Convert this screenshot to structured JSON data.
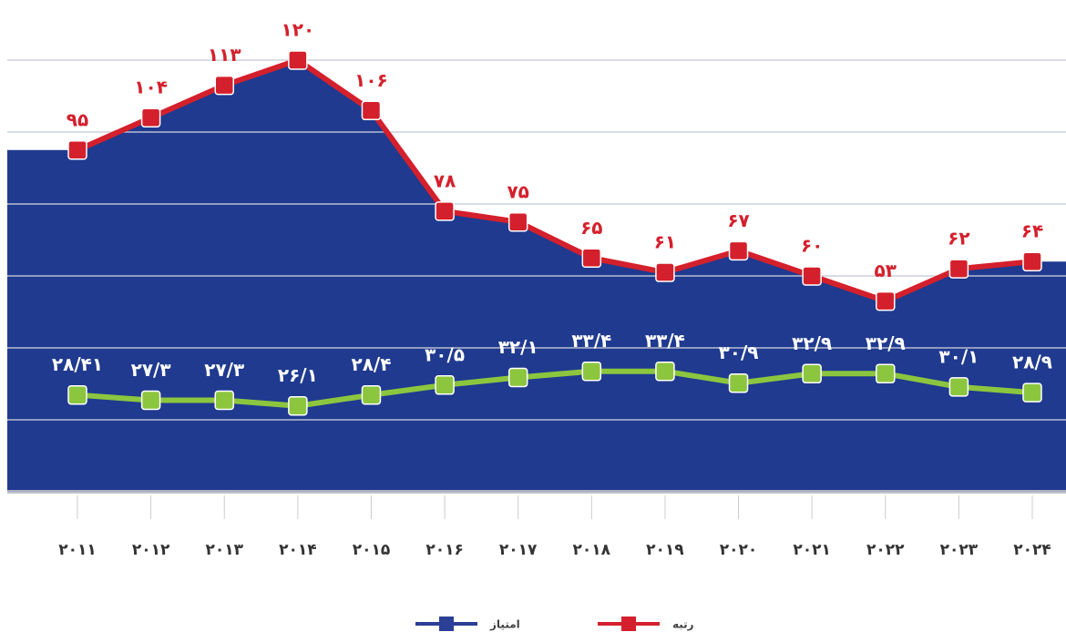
{
  "chart_data": {
    "type": "line",
    "categories": [
      "۲۰۱۱",
      "۲۰۱۲",
      "۲۰۱۳",
      "۲۰۱۴",
      "۲۰۱۵",
      "۲۰۱۶",
      "۲۰۱۷",
      "۲۰۱۸",
      "۲۰۱۹",
      "۲۰۲۰",
      "۲۰۲۱",
      "۲۰۲۲",
      "۲۰۲۳",
      "۲۰۲۴"
    ],
    "series": [
      {
        "name": "رتبه",
        "color": "#d4202c",
        "area_color": "#1f3a8f",
        "values": [
          95,
          104,
          113,
          120,
          106,
          78,
          75,
          65,
          61,
          67,
          60,
          53,
          62,
          64
        ],
        "value_labels": [
          "۹۵",
          "۱۰۴",
          "۱۱۳",
          "۱۲۰",
          "۱۰۶",
          "۷۸",
          "۷۵",
          "۶۵",
          "۶۱",
          "۶۷",
          "۶۰",
          "۵۳",
          "۶۲",
          "۶۴"
        ]
      },
      {
        "name": "امتیاز",
        "color": "#2a3f95",
        "line_color": "#8cc63f",
        "axis": "y2",
        "values": [
          28.41,
          27.3,
          27.3,
          26.1,
          28.4,
          30.5,
          32.1,
          33.4,
          33.4,
          30.9,
          32.9,
          32.9,
          30.1,
          28.9
        ],
        "value_labels": [
          "۲۸/۴۱",
          "۲۷/۳",
          "۲۷/۳",
          "۲۶/۱",
          "۲۸/۴",
          "۳۰/۵",
          "۳۲/۱",
          "۳۳/۴",
          "۳۳/۴",
          "۳۰/۹",
          "۳۲/۹",
          "۳۲/۹",
          "۳۰/۱",
          "۲۸/۹"
        ]
      }
    ],
    "ylim": [
      0,
      120
    ],
    "yticks": [
      0,
      20,
      40,
      60,
      80,
      100,
      120
    ],
    "y2lim": [
      8,
      99
    ],
    "grid": true,
    "legend": "bottom"
  }
}
